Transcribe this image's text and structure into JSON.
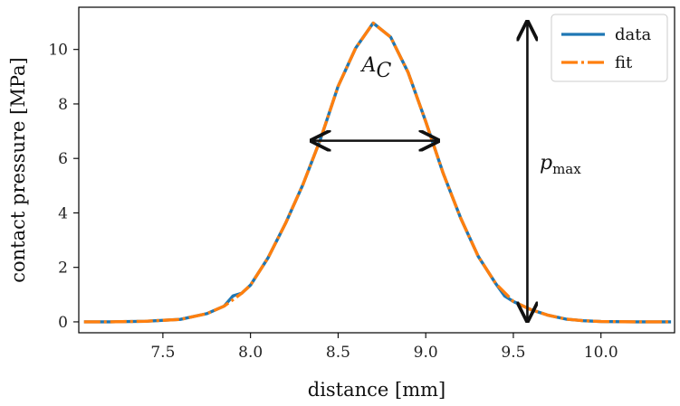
{
  "chart_data": {
    "type": "line",
    "title": "",
    "xlabel": "distance [mm]",
    "ylabel": "contact pressure [MPa]",
    "xlim": [
      7.02,
      10.42
    ],
    "ylim": [
      -0.4,
      11.55
    ],
    "xticks": [
      7.5,
      8.0,
      8.5,
      9.0,
      9.5,
      10.0
    ],
    "xtick_labels": [
      "7.5",
      "8.0",
      "8.5",
      "9.0",
      "9.5",
      "10.0"
    ],
    "yticks": [
      0,
      2,
      4,
      6,
      8,
      10
    ],
    "ytick_labels": [
      "0",
      "2",
      "4",
      "6",
      "8",
      "10"
    ],
    "grid": false,
    "legend_position": "top-right",
    "series": [
      {
        "name": "data",
        "color": "#1f77b4",
        "style": "solid",
        "x": [
          7.05,
          7.2,
          7.4,
          7.6,
          7.75,
          7.85,
          7.9,
          7.95,
          8.0,
          8.1,
          8.2,
          8.3,
          8.4,
          8.5,
          8.6,
          8.7,
          8.8,
          8.9,
          9.0,
          9.1,
          9.2,
          9.3,
          9.4,
          9.45,
          9.5,
          9.6,
          9.7,
          9.8,
          9.9,
          10.0,
          10.2,
          10.4
        ],
        "y": [
          0.0,
          0.0,
          0.02,
          0.09,
          0.3,
          0.58,
          0.95,
          1.05,
          1.35,
          2.35,
          3.62,
          5.05,
          6.72,
          8.65,
          10.05,
          10.97,
          10.45,
          9.15,
          7.35,
          5.45,
          3.8,
          2.4,
          1.4,
          0.95,
          0.75,
          0.45,
          0.24,
          0.1,
          0.04,
          0.01,
          0.0,
          0.0
        ]
      },
      {
        "name": "fit",
        "color": "#ff7f0e",
        "style": "dash-dot",
        "x": [
          7.05,
          7.2,
          7.4,
          7.6,
          7.75,
          7.85,
          7.95,
          8.0,
          8.1,
          8.2,
          8.3,
          8.4,
          8.5,
          8.6,
          8.7,
          8.8,
          8.9,
          9.0,
          9.1,
          9.2,
          9.3,
          9.4,
          9.5,
          9.6,
          9.7,
          9.8,
          9.9,
          10.0,
          10.2,
          10.4
        ],
        "y": [
          0.0,
          0.0,
          0.02,
          0.09,
          0.3,
          0.58,
          1.05,
          1.35,
          2.35,
          3.62,
          5.05,
          6.72,
          8.65,
          10.05,
          10.97,
          10.45,
          9.15,
          7.35,
          5.45,
          3.8,
          2.4,
          1.4,
          0.75,
          0.45,
          0.24,
          0.1,
          0.04,
          0.01,
          0.0,
          0.0
        ]
      }
    ],
    "annotations": {
      "area_label": "A",
      "area_label_sub": "C",
      "pmax_label": "p",
      "pmax_label_sub": "max",
      "width_arrow": {
        "x_from": 8.35,
        "x_to": 9.07,
        "y": 6.65
      },
      "pmax_arrow": {
        "x": 9.58,
        "y_from": 0.05,
        "y_to": 11.0
      },
      "area_label_pos": {
        "x": 8.72,
        "y": 9.2
      },
      "pmax_label_pos": {
        "x": 9.65,
        "y": 5.6
      }
    }
  }
}
